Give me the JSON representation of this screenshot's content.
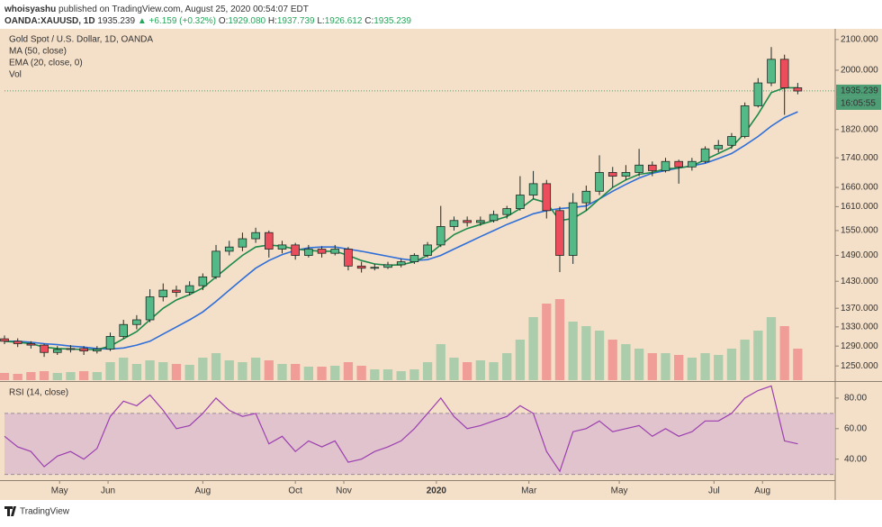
{
  "header": {
    "publisher": "whoisyashu",
    "published": "published on TradingView.com, August 25, 2020 00:54:07 EDT",
    "symbol": "OANDA:XAUUSD, 1D",
    "price": "1935.239",
    "change": "▲ +6.159 (+0.32%)",
    "ohlc": [
      {
        "label": "O:",
        "value": "1929.080"
      },
      {
        "label": "H:",
        "value": "1937.739"
      },
      {
        "label": "L:",
        "value": "1926.612"
      },
      {
        "label": "C:",
        "value": "1935.239"
      }
    ]
  },
  "chart_data": {
    "type": "candlestick",
    "title": "Gold Spot / U.S. Dollar, 1D, OANDA",
    "log_scale": true,
    "x": [
      0,
      6,
      12,
      18,
      24,
      30,
      36,
      42,
      48,
      54,
      60,
      66,
      72,
      78,
      84,
      90,
      96,
      102,
      108,
      114,
      120,
      126,
      132,
      138,
      144,
      150,
      156,
      162,
      168,
      174,
      180,
      186,
      192,
      198,
      204,
      210,
      216,
      222,
      228,
      234,
      240,
      246,
      252,
      258,
      264,
      270,
      276,
      282,
      288,
      294,
      300,
      306,
      312,
      318,
      324,
      330,
      336,
      342,
      348,
      354,
      360
    ],
    "xlim": [
      0,
      377
    ],
    "xticks": [
      {
        "value": 25,
        "label": "May"
      },
      {
        "value": 47,
        "label": "Jun"
      },
      {
        "value": 90,
        "label": "Aug"
      },
      {
        "value": 132,
        "label": "Oct"
      },
      {
        "value": 154,
        "label": "Nov"
      },
      {
        "value": 196,
        "label": "2020"
      },
      {
        "value": 238,
        "label": "Mar"
      },
      {
        "value": 279,
        "label": "May"
      },
      {
        "value": 322,
        "label": "Jul"
      },
      {
        "value": 344,
        "label": "Aug"
      }
    ],
    "ylim": [
      1222,
      2136
    ],
    "yticks": [
      {
        "value": 2100,
        "label": "2100.000"
      },
      {
        "value": 2000,
        "label": "2000.000"
      },
      {
        "value": 1820,
        "label": "1820.000"
      },
      {
        "value": 1740,
        "label": "1740.000"
      },
      {
        "value": 1660,
        "label": "1660.000"
      },
      {
        "value": 1610,
        "label": "1610.000"
      },
      {
        "value": 1550,
        "label": "1550.000"
      },
      {
        "value": 1490,
        "label": "1490.000"
      },
      {
        "value": 1430,
        "label": "1430.000"
      },
      {
        "value": 1370,
        "label": "1370.000"
      },
      {
        "value": 1330,
        "label": "1330.000"
      },
      {
        "value": 1290,
        "label": "1290.000"
      },
      {
        "value": 1250,
        "label": "1250.000"
      }
    ],
    "open": [
      1305,
      1300,
      1295,
      1292,
      1277,
      1283,
      1285,
      1280,
      1284,
      1310,
      1335,
      1345,
      1395,
      1410,
      1405,
      1420,
      1440,
      1500,
      1510,
      1530,
      1545,
      1505,
      1515,
      1490,
      1505,
      1495,
      1505,
      1465,
      1460,
      1462,
      1468,
      1475,
      1490,
      1515,
      1560,
      1575,
      1570,
      1575,
      1590,
      1605,
      1640,
      1670,
      1600,
      1490,
      1620,
      1650,
      1700,
      1690,
      1700,
      1720,
      1705,
      1730,
      1715,
      1730,
      1765,
      1775,
      1800,
      1890,
      1960,
      2035,
      1945
    ],
    "high": [
      1312,
      1306,
      1300,
      1295,
      1290,
      1292,
      1290,
      1290,
      1318,
      1345,
      1355,
      1412,
      1425,
      1420,
      1430,
      1448,
      1515,
      1525,
      1545,
      1557,
      1550,
      1525,
      1520,
      1515,
      1512,
      1515,
      1510,
      1475,
      1470,
      1475,
      1482,
      1495,
      1522,
      1612,
      1585,
      1585,
      1585,
      1600,
      1612,
      1690,
      1704,
      1680,
      1610,
      1645,
      1665,
      1747,
      1715,
      1720,
      1765,
      1730,
      1740,
      1735,
      1740,
      1772,
      1790,
      1810,
      1900,
      1975,
      2075,
      2050,
      1960
    ],
    "low": [
      1294,
      1288,
      1285,
      1268,
      1272,
      1277,
      1272,
      1275,
      1280,
      1305,
      1325,
      1340,
      1385,
      1395,
      1398,
      1410,
      1435,
      1490,
      1500,
      1520,
      1485,
      1495,
      1480,
      1485,
      1485,
      1490,
      1455,
      1450,
      1455,
      1458,
      1462,
      1470,
      1485,
      1510,
      1550,
      1560,
      1562,
      1570,
      1580,
      1600,
      1630,
      1580,
      1451,
      1470,
      1600,
      1640,
      1660,
      1680,
      1690,
      1690,
      1700,
      1670,
      1705,
      1725,
      1755,
      1765,
      1795,
      1885,
      1950,
      1863,
      1925
    ],
    "close": [
      1300,
      1295,
      1292,
      1277,
      1283,
      1285,
      1280,
      1284,
      1310,
      1335,
      1345,
      1395,
      1410,
      1405,
      1420,
      1440,
      1500,
      1510,
      1530,
      1545,
      1505,
      1515,
      1490,
      1505,
      1495,
      1505,
      1465,
      1460,
      1462,
      1468,
      1475,
      1490,
      1515,
      1560,
      1575,
      1570,
      1575,
      1590,
      1605,
      1640,
      1670,
      1600,
      1490,
      1620,
      1650,
      1700,
      1690,
      1700,
      1720,
      1705,
      1730,
      1715,
      1730,
      1765,
      1775,
      1800,
      1890,
      1960,
      2035,
      1945,
      1935
    ],
    "up_color": "#53b987",
    "down_color": "#eb4d5c",
    "last_price": 1935.239,
    "countdown": "16:05:55",
    "series": [
      {
        "name": "MA (50, close)",
        "color": "#2f6fd8",
        "values": [
          1300,
          1300,
          1298,
          1295,
          1293,
          1290,
          1288,
          1285,
          1284,
          1286,
          1292,
          1300,
          1315,
          1330,
          1345,
          1362,
          1385,
          1410,
          1435,
          1460,
          1478,
          1492,
          1502,
          1508,
          1510,
          1510,
          1505,
          1500,
          1494,
          1488,
          1482,
          1478,
          1480,
          1490,
          1505,
          1520,
          1535,
          1550,
          1565,
          1578,
          1592,
          1600,
          1605,
          1608,
          1612,
          1630,
          1650,
          1668,
          1685,
          1698,
          1705,
          1712,
          1718,
          1725,
          1738,
          1752,
          1775,
          1800,
          1830,
          1855,
          1872
        ]
      },
      {
        "name": "EMA (20, close, 0)",
        "color": "#1d8a4c",
        "values": [
          1300,
          1298,
          1295,
          1288,
          1285,
          1284,
          1283,
          1283,
          1290,
          1305,
          1320,
          1345,
          1370,
          1388,
          1400,
          1415,
          1440,
          1465,
          1490,
          1510,
          1515,
          1512,
          1505,
          1502,
          1500,
          1500,
          1490,
          1478,
          1470,
          1467,
          1468,
          1475,
          1490,
          1515,
          1540,
          1555,
          1565,
          1575,
          1585,
          1605,
          1630,
          1620,
          1575,
          1580,
          1600,
          1630,
          1660,
          1680,
          1695,
          1700,
          1710,
          1712,
          1718,
          1735,
          1752,
          1770,
          1810,
          1865,
          1930,
          1945,
          1945
        ]
      }
    ],
    "volume": {
      "name": "Vol",
      "ylim": [
        0,
        100
      ],
      "values": [
        8,
        7,
        9,
        10,
        8,
        9,
        10,
        9,
        20,
        25,
        18,
        22,
        20,
        18,
        17,
        25,
        30,
        22,
        20,
        25,
        22,
        18,
        18,
        15,
        15,
        16,
        20,
        16,
        12,
        12,
        10,
        12,
        20,
        40,
        25,
        20,
        22,
        20,
        30,
        45,
        70,
        85,
        90,
        65,
        60,
        55,
        45,
        40,
        35,
        30,
        30,
        28,
        25,
        30,
        28,
        35,
        45,
        55,
        70,
        60,
        35
      ]
    },
    "rsi": {
      "name": "RSI (14, close)",
      "color": "#9c3fb0",
      "ylim": [
        28,
        90
      ],
      "band": [
        30,
        70
      ],
      "yticks": [
        {
          "value": 80,
          "label": "80.00"
        },
        {
          "value": 60,
          "label": "60.00"
        },
        {
          "value": 40,
          "label": "40.00"
        }
      ],
      "values": [
        55,
        48,
        45,
        35,
        42,
        45,
        40,
        47,
        68,
        78,
        75,
        82,
        72,
        60,
        62,
        70,
        80,
        72,
        68,
        70,
        50,
        55,
        45,
        52,
        48,
        52,
        38,
        40,
        45,
        48,
        52,
        60,
        70,
        80,
        68,
        60,
        62,
        65,
        68,
        75,
        70,
        45,
        32,
        58,
        60,
        65,
        58,
        60,
        62,
        55,
        60,
        55,
        58,
        65,
        65,
        70,
        80,
        85,
        88,
        52,
        50
      ]
    }
  },
  "footer": {
    "brand": "TradingView"
  }
}
